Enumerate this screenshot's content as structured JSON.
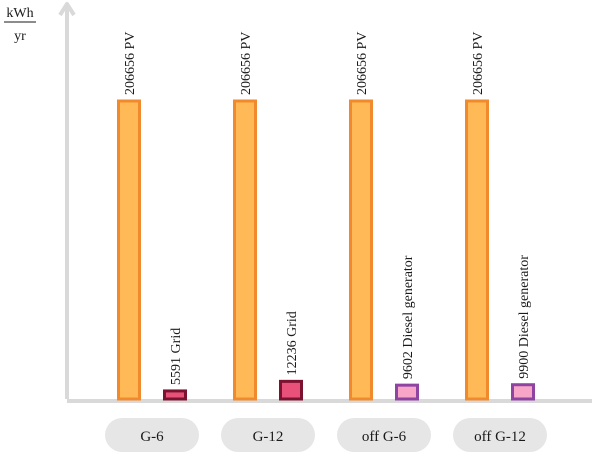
{
  "chart_data": {
    "type": "bar",
    "ylabel_numerator": "kWh",
    "ylabel_denominator": "yr",
    "ylim": [
      0,
      206656
    ],
    "grid": false,
    "legend": "none",
    "categories": [
      "G-6",
      "G-12",
      "off G-6",
      "off G-12"
    ],
    "series": [
      {
        "values": [
          206656,
          206656,
          206656,
          206656
        ],
        "labels": [
          "206656 PV",
          "206656 PV",
          "206656 PV",
          "206656 PV"
        ],
        "fill": [
          "#FFB957",
          "#FFB957",
          "#FFB957",
          "#FFB957"
        ],
        "stroke": [
          "#F08A2C",
          "#F08A2C",
          "#F08A2C",
          "#F08A2C"
        ]
      },
      {
        "values": [
          5591,
          12236,
          9602,
          9900
        ],
        "labels": [
          "5591 Grid",
          "12236 Grid",
          "9602 Diesel generator",
          "9900 Diesel generator"
        ],
        "fill": [
          "#E8527A",
          "#E8527A",
          "#F7A6C8",
          "#F7A6C8"
        ],
        "stroke": [
          "#7A1230",
          "#7A1230",
          "#8E44A0",
          "#8E44A0"
        ]
      }
    ],
    "colors": {
      "axis": "#D9D9D9",
      "category_box": "#E6E6E6"
    }
  }
}
